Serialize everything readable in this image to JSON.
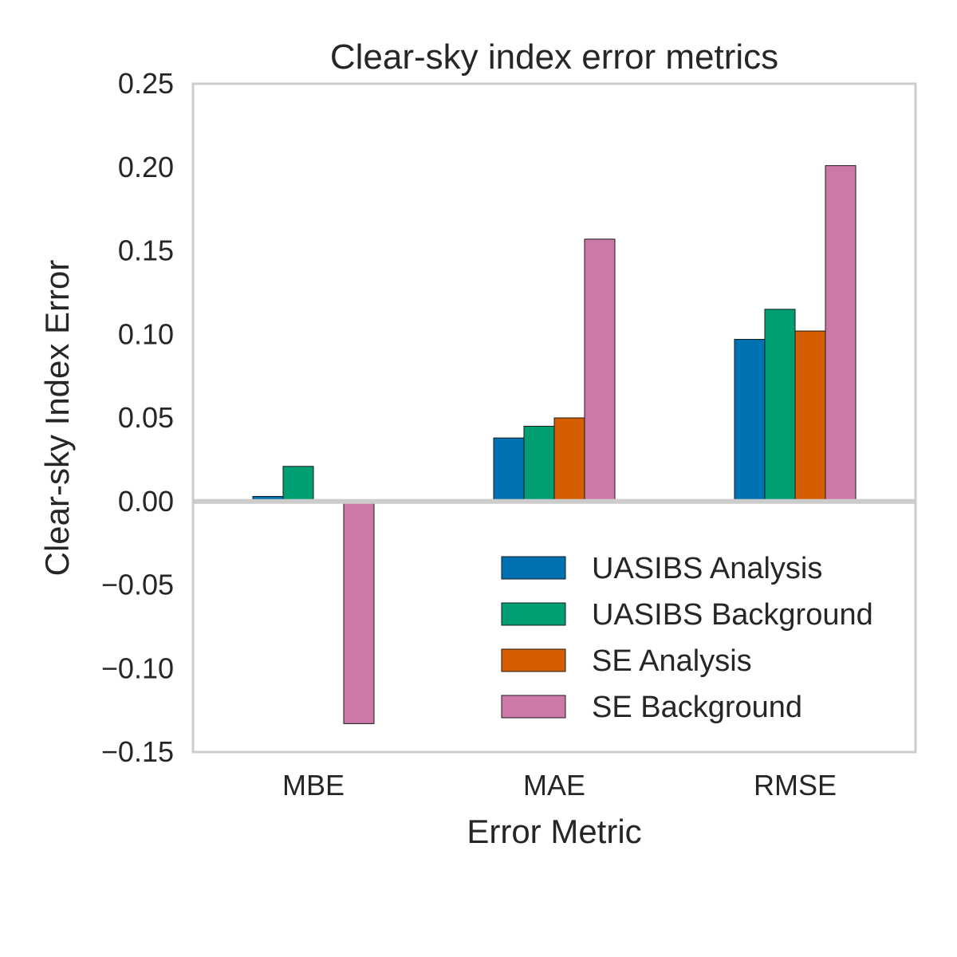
{
  "chart_data": {
    "type": "bar",
    "title": "Clear-sky index error metrics",
    "xlabel": "Error Metric",
    "ylabel": "Clear-sky Index Error",
    "categories": [
      "MBE",
      "MAE",
      "RMSE"
    ],
    "ylim": [
      -0.15,
      0.25
    ],
    "yticks": [
      -0.15,
      -0.1,
      -0.05,
      0.0,
      0.05,
      0.1,
      0.15,
      0.2,
      0.25
    ],
    "ytick_labels": [
      "−0.15",
      "−0.10",
      "−0.05",
      "0.00",
      "0.05",
      "0.10",
      "0.15",
      "0.20",
      "0.25"
    ],
    "grid": false,
    "legend_position": "lower-right",
    "series": [
      {
        "name": "UASIBS Analysis",
        "color": "#0072b2",
        "values": [
          0.003,
          0.038,
          0.097
        ]
      },
      {
        "name": "UASIBS Background",
        "color": "#009e73",
        "values": [
          0.021,
          0.045,
          0.115
        ]
      },
      {
        "name": "SE Analysis",
        "color": "#d55e00",
        "values": [
          -0.001,
          0.05,
          0.102
        ]
      },
      {
        "name": "SE Background",
        "color": "#cc79a7",
        "values": [
          -0.133,
          0.157,
          0.201
        ]
      }
    ]
  }
}
